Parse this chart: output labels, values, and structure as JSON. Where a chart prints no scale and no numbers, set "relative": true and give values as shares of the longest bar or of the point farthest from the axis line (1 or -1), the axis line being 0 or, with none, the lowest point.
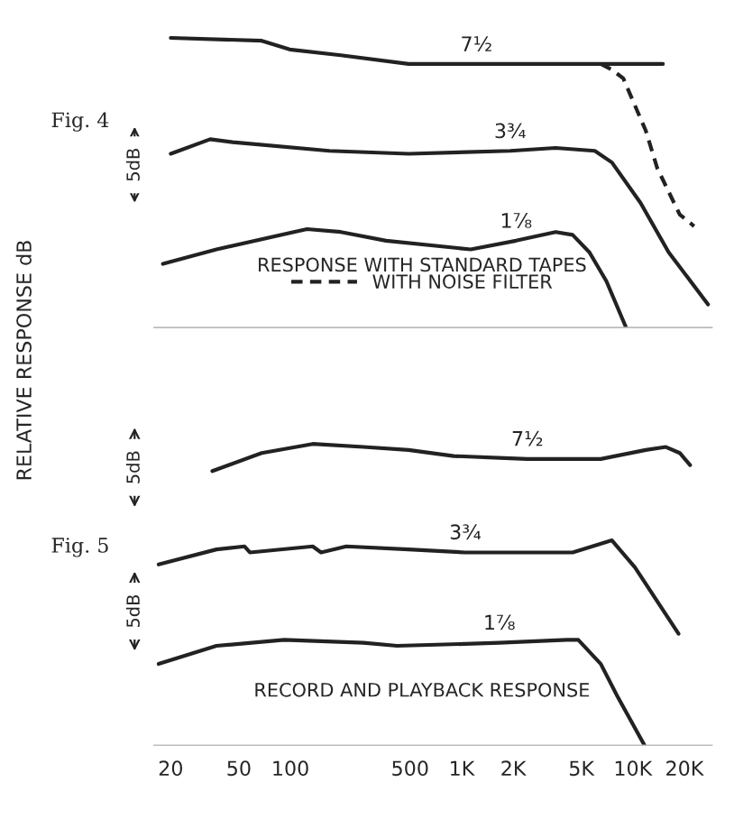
{
  "chart_data": [
    {
      "type": "line",
      "title": "Fig. 4",
      "ylabel": "RELATIVE RESPONSE dB",
      "relative": true,
      "log": "x",
      "xlim": [
        16,
        29000
      ],
      "tick_labels": false,
      "grid": false,
      "legend": "bottom",
      "marker": "none",
      "annotations": [
        "RESPONSE WITH STANDARD TAPES",
        "5dB"
      ],
      "series": [
        {
          "name": "7½",
          "color": "#222222",
          "x": [
            20,
            68,
            99,
            197,
            490,
            1220,
            6500,
            15000
          ],
          "values": [
            1.0,
            0.99,
            0.96,
            0.94,
            0.91,
            0.91,
            0.91,
            0.91
          ]
        },
        {
          "name": "WITH NOISE FILTER",
          "color": "#222222",
          "line_style": "dashed",
          "x": [
            6500,
            7550,
            8800,
            11900,
            13900,
            18800,
            22800
          ],
          "values": [
            0.91,
            0.89,
            0.86,
            0.68,
            0.55,
            0.39,
            0.35
          ]
        },
        {
          "name": "3¾",
          "color": "#222222",
          "x": [
            20,
            34,
            46,
            169,
            490,
            1920,
            3540,
            6000,
            7550,
            11100,
            16200,
            27500
          ],
          "values": [
            0.6,
            0.65,
            0.64,
            0.61,
            0.6,
            0.61,
            0.62,
            0.61,
            0.57,
            0.43,
            0.26,
            0.08
          ]
        },
        {
          "name": "1⅞",
          "color": "#222222",
          "x": [
            18,
            37,
            125,
            197,
            362,
            1130,
            2080,
            3540,
            4450,
            5580,
            7010,
            9140
          ],
          "values": [
            0.22,
            0.27,
            0.34,
            0.33,
            0.3,
            0.27,
            0.3,
            0.33,
            0.32,
            0.26,
            0.16,
            0.0
          ]
        }
      ]
    },
    {
      "type": "line",
      "title": "Fig. 5",
      "relative": true,
      "log": "x",
      "xlim": [
        16,
        29000
      ],
      "xticks": [
        {
          "value": 20,
          "label": "20"
        },
        {
          "value": 50,
          "label": "50"
        },
        {
          "value": 100,
          "label": "100"
        },
        {
          "value": 500,
          "label": "500"
        },
        {
          "value": 1000,
          "label": "1K"
        },
        {
          "value": 2000,
          "label": "2K"
        },
        {
          "value": 5000,
          "label": "5K"
        },
        {
          "value": 10000,
          "label": "10K"
        },
        {
          "value": 20000,
          "label": "20K"
        }
      ],
      "tick_labels": "x",
      "grid": false,
      "legend": false,
      "marker": "none",
      "annotations": [
        "RECORD AND PLAYBACK RESPONSE",
        "5dB",
        "5dB"
      ],
      "series": [
        {
          "name": "7½",
          "color": "#222222",
          "x": [
            35,
            68,
            135,
            267,
            490,
            900,
            2420,
            6500,
            11900,
            15600,
            18800,
            21600
          ],
          "values": [
            0.91,
            0.97,
            1.0,
            0.99,
            0.98,
            0.96,
            0.95,
            0.95,
            0.98,
            0.99,
            0.97,
            0.93
          ]
        },
        {
          "name": "3¾",
          "color": "#222222",
          "x": [
            17,
            37,
            54,
            58,
            135,
            151,
            212,
            490,
            1050,
            4450,
            7550,
            10300,
            18500
          ],
          "values": [
            0.6,
            0.65,
            0.66,
            0.64,
            0.66,
            0.64,
            0.66,
            0.65,
            0.64,
            0.64,
            0.68,
            0.59,
            0.37
          ]
        },
        {
          "name": "1⅞",
          "color": "#222222",
          "x": [
            17,
            37,
            92,
            267,
            420,
            1660,
            4120,
            4800,
            6500,
            8170,
            11700
          ],
          "values": [
            0.27,
            0.33,
            0.35,
            0.34,
            0.33,
            0.34,
            0.35,
            0.35,
            0.27,
            0.16,
            0.0
          ]
        }
      ]
    }
  ]
}
